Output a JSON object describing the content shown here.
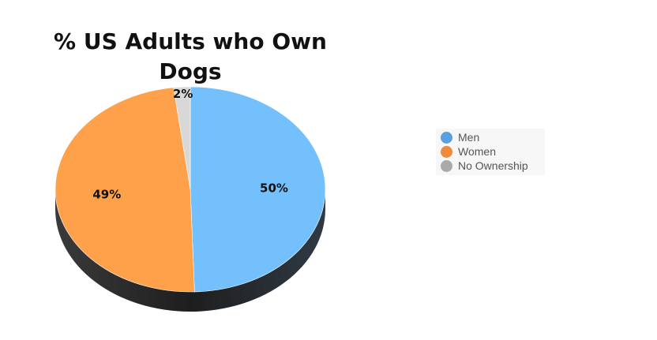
{
  "chart_data": {
    "type": "pie",
    "title": "% US Adults who Own Dogs",
    "categories": [
      "Men",
      "Women",
      "No Ownership"
    ],
    "values": [
      50,
      49,
      2
    ],
    "labels": [
      "50%",
      "49%",
      "2%"
    ],
    "colors": [
      "#74c0fc",
      "#ffa04a",
      "#d8d8d8"
    ],
    "legend_colors": [
      "#5aa0e0",
      "#f08a3c",
      "#aaaaaa"
    ],
    "legend": "right",
    "style": "3d"
  }
}
